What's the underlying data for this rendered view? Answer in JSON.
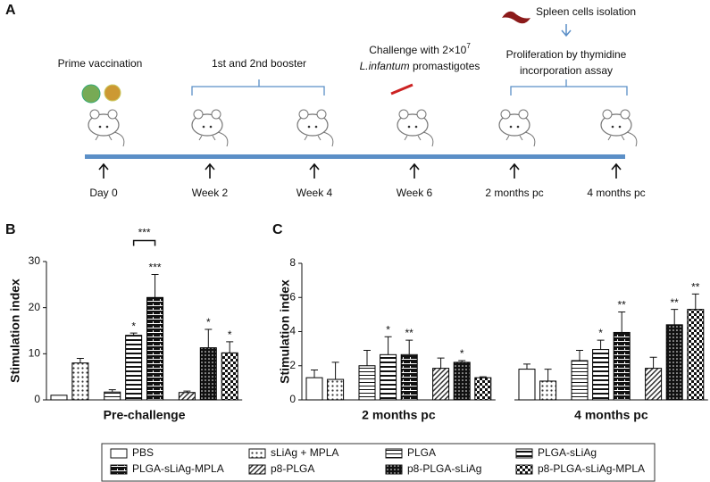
{
  "panel_a": {
    "label": "A",
    "prime": "Prime vaccination",
    "booster": "1st and 2nd booster",
    "challenge": {
      "line1": "Challenge with 2×10",
      "exponent": "7",
      "italic": "L.infantum",
      "rest": " promastigotes"
    },
    "spleen": "Spleen cells isolation",
    "proliferation": [
      "Proliferation by thymidine",
      "incorporation assay"
    ],
    "timepoints": [
      "Day 0",
      "Week 2",
      "Week 4",
      "Week 6",
      "2 months pc",
      "4 months pc"
    ]
  },
  "chart_data": [
    {
      "type": "bar",
      "panel": "B",
      "ylabel": "Stimulation index",
      "categories": [
        "Pre-challenge"
      ],
      "ylim": [
        0,
        30
      ],
      "yticks": [
        0,
        10,
        20,
        30
      ],
      "color": "#000000",
      "bracket": {
        "from": 3,
        "to": 4,
        "label": "***"
      },
      "series": [
        {
          "name": "PBS",
          "pattern": "none",
          "values": [
            1.0
          ],
          "errors": [
            null
          ],
          "sig": [
            null
          ]
        },
        {
          "name": "sLiAg + MPLA",
          "pattern": "dots",
          "values": [
            8.0
          ],
          "errors": [
            1.0
          ],
          "sig": [
            null
          ]
        },
        {
          "name": "PLGA",
          "pattern": "hlines",
          "values": [
            1.7
          ],
          "errors": [
            0.5
          ],
          "sig": [
            null
          ]
        },
        {
          "name": "PLGA-sLiAg",
          "pattern": "hbold",
          "values": [
            14.0
          ],
          "errors": [
            0.5
          ],
          "sig": [
            "*"
          ]
        },
        {
          "name": "PLGA-sLiAg-MPLA",
          "pattern": "brick",
          "values": [
            22.2
          ],
          "errors": [
            5.0
          ],
          "sig": [
            "***"
          ]
        },
        {
          "name": "p8-PLGA",
          "pattern": "diag",
          "values": [
            1.6
          ],
          "errors": [
            0.3
          ],
          "sig": [
            null
          ]
        },
        {
          "name": "p8-PLGA-sLiAg",
          "pattern": "darkdots",
          "values": [
            11.3
          ],
          "errors": [
            4.0
          ],
          "sig": [
            "*"
          ]
        },
        {
          "name": "p8-PLGA-sLiAg-MPLA",
          "pattern": "checker",
          "values": [
            10.2
          ],
          "errors": [
            2.4
          ],
          "sig": [
            "*"
          ]
        }
      ]
    },
    {
      "type": "bar",
      "panel": "C",
      "ylabel": "Stimulation index",
      "categories": [
        "2 months pc",
        "4 months pc"
      ],
      "ylim": [
        0,
        8
      ],
      "yticks": [
        0,
        2,
        4,
        6,
        8
      ],
      "color": "#000000",
      "series": [
        {
          "pattern": "none",
          "values": [
            1.3,
            1.8
          ],
          "errors": [
            0.45,
            0.3
          ],
          "sig": [
            null,
            null
          ]
        },
        {
          "pattern": "dots",
          "values": [
            1.2,
            1.1
          ],
          "errors": [
            1.0,
            0.7
          ],
          "sig": [
            null,
            null
          ]
        },
        {
          "pattern": "hlines",
          "values": [
            2.0,
            2.3
          ],
          "errors": [
            0.9,
            0.6
          ],
          "sig": [
            null,
            null
          ]
        },
        {
          "pattern": "hbold",
          "values": [
            2.65,
            2.95
          ],
          "errors": [
            1.05,
            0.55
          ],
          "sig": [
            "*",
            "*"
          ]
        },
        {
          "pattern": "brick",
          "values": [
            2.65,
            3.95
          ],
          "errors": [
            0.85,
            1.2
          ],
          "sig": [
            "**",
            "**"
          ]
        },
        {
          "pattern": "diag",
          "values": [
            1.85,
            1.85
          ],
          "errors": [
            0.6,
            0.65
          ],
          "sig": [
            null,
            null
          ]
        },
        {
          "pattern": "darkdots",
          "values": [
            2.2,
            4.4
          ],
          "errors": [
            0.1,
            0.9
          ],
          "sig": [
            "*",
            "**"
          ]
        },
        {
          "pattern": "checker",
          "values": [
            1.3,
            5.3
          ],
          "errors": [
            0.05,
            0.9
          ],
          "sig": [
            null,
            "**"
          ]
        }
      ]
    }
  ]
}
